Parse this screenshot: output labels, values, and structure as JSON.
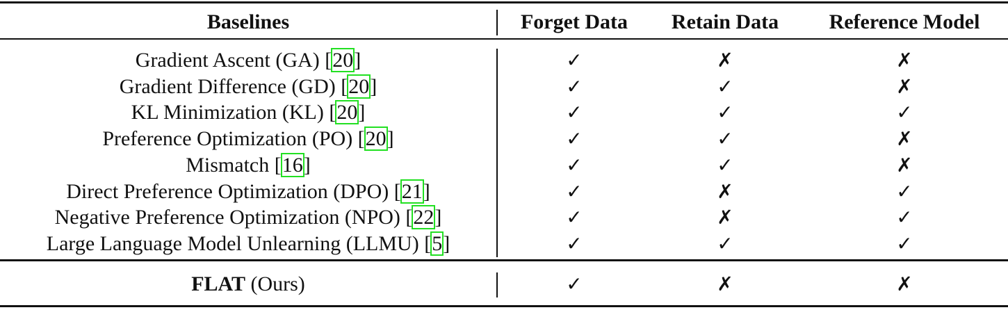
{
  "headers": [
    "Baselines",
    "Forget Data",
    "Retain Data",
    "Reference Model"
  ],
  "marks": {
    "yes": "✓",
    "no": "✗"
  },
  "colors": {
    "citation_box": "#22e022",
    "text": "#111111"
  },
  "rows": [
    {
      "name": "Gradient Ascent (GA) [",
      "ref": "20",
      "close": "]",
      "forget": "✓",
      "retain": "✗",
      "reference": "✗"
    },
    {
      "name": "Gradient Difference (GD) [",
      "ref": "20",
      "close": "]",
      "forget": "✓",
      "retain": "✓",
      "reference": "✗"
    },
    {
      "name": "KL Minimization (KL) [",
      "ref": "20",
      "close": "]",
      "forget": "✓",
      "retain": "✓",
      "reference": "✓"
    },
    {
      "name": "Preference Optimization (PO) [",
      "ref": "20",
      "close": "]",
      "forget": "✓",
      "retain": "✓",
      "reference": "✗"
    },
    {
      "name": "Mismatch [",
      "ref": "16",
      "close": "]",
      "forget": "✓",
      "retain": "✓",
      "reference": "✗"
    },
    {
      "name": "Direct Preference Optimization (DPO) [",
      "ref": "21",
      "close": "]",
      "forget": "✓",
      "retain": "✗",
      "reference": "✓"
    },
    {
      "name": "Negative Preference Optimization (NPO) [",
      "ref": "22",
      "close": "]",
      "forget": "✓",
      "retain": "✗",
      "reference": "✓"
    },
    {
      "name": "Large Language Model Unlearning (LLMU) [",
      "ref": "5",
      "close": "]",
      "forget": "✓",
      "retain": "✓",
      "reference": "✓"
    }
  ],
  "ours": {
    "name_bold": "FLAT",
    "name_rest": " (Ours)",
    "forget": "✓",
    "retain": "✗",
    "reference": "✗"
  }
}
